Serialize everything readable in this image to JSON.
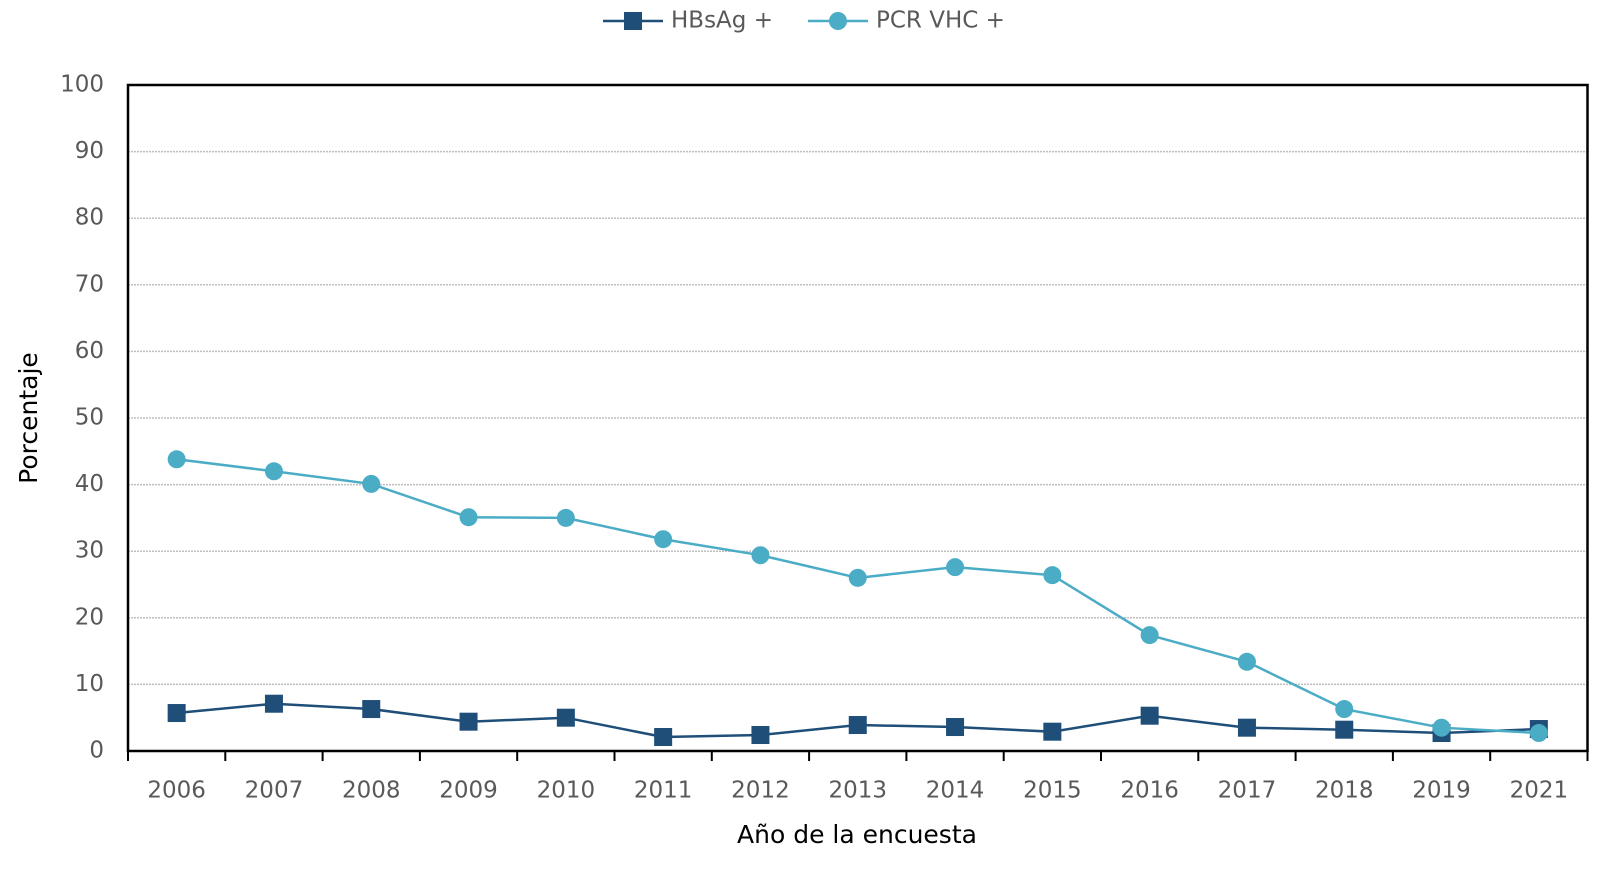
{
  "chart_data": {
    "type": "line",
    "x_label": "Año de la encuesta",
    "y_label": "Porcentaje",
    "categories": [
      "2006",
      "2007",
      "2008",
      "2009",
      "2010",
      "2011",
      "2012",
      "2013",
      "2014",
      "2015",
      "2016",
      "2017",
      "2018",
      "2019",
      "2021"
    ],
    "series": [
      {
        "name": "HBsAg +",
        "color": "#1f4e79",
        "marker": "square",
        "values": [
          5.7,
          7.1,
          6.3,
          4.4,
          5.0,
          2.1,
          2.4,
          3.9,
          3.6,
          2.9,
          5.3,
          3.5,
          3.2,
          2.7,
          3.3
        ]
      },
      {
        "name": "PCR VHC +",
        "color": "#4bacc6",
        "marker": "circle",
        "values": [
          43.8,
          42.0,
          40.1,
          35.1,
          35.0,
          31.8,
          29.4,
          26.0,
          27.6,
          26.4,
          17.4,
          13.4,
          6.3,
          3.5,
          2.7
        ]
      }
    ],
    "ylim": [
      0,
      100
    ],
    "yticks": [
      0,
      10,
      20,
      30,
      40,
      50,
      60,
      70,
      80,
      90,
      100
    ],
    "grid": true,
    "legend": "top"
  }
}
